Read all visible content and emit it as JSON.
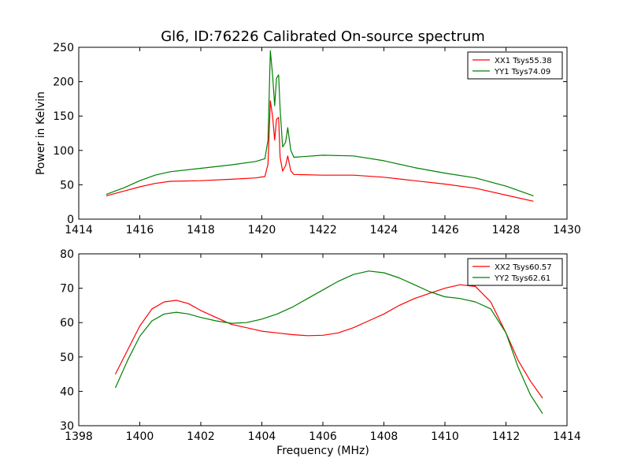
{
  "title": "Gl6, ID:76226 Calibrated On-source spectrum",
  "chart_data": [
    {
      "type": "line",
      "xlabel": "",
      "ylabel": "Power in Kelvin",
      "xlim": [
        1414,
        1430
      ],
      "ylim": [
        0,
        250
      ],
      "xticks": [
        1414,
        1416,
        1418,
        1420,
        1422,
        1424,
        1426,
        1428,
        1430
      ],
      "yticks": [
        0,
        50,
        100,
        150,
        200,
        250
      ],
      "legend": "top-right",
      "series": [
        {
          "name": "XX1 Tsys55.38",
          "color": "#ff0000",
          "x": [
            1414.9,
            1415.5,
            1416,
            1416.5,
            1417,
            1418,
            1419,
            1419.8,
            1420.1,
            1420.2,
            1420.28,
            1420.35,
            1420.42,
            1420.48,
            1420.55,
            1420.6,
            1420.68,
            1420.78,
            1420.85,
            1420.95,
            1421.05,
            1422,
            1423,
            1424,
            1425,
            1426,
            1427,
            1428,
            1428.9
          ],
          "y": [
            34,
            41,
            47,
            52,
            55,
            56,
            58,
            60,
            62,
            80,
            172,
            150,
            115,
            145,
            148,
            90,
            70,
            78,
            92,
            70,
            65,
            64,
            64,
            61,
            56,
            51,
            45,
            35,
            26
          ]
        },
        {
          "name": "YY1 Tsys74.09",
          "color": "#008000",
          "x": [
            1414.9,
            1415.5,
            1416,
            1416.5,
            1417,
            1418,
            1419,
            1419.8,
            1420.1,
            1420.2,
            1420.28,
            1420.35,
            1420.42,
            1420.48,
            1420.55,
            1420.6,
            1420.68,
            1420.78,
            1420.85,
            1420.95,
            1421.05,
            1422,
            1423,
            1424,
            1425,
            1426,
            1427,
            1428,
            1428.9
          ],
          "y": [
            36,
            46,
            56,
            64,
            69,
            74,
            79,
            84,
            88,
            115,
            245,
            210,
            165,
            205,
            210,
            160,
            105,
            112,
            133,
            100,
            90,
            93,
            92,
            85,
            75,
            67,
            60,
            48,
            34
          ]
        }
      ]
    },
    {
      "type": "line",
      "xlabel": "Frequency (MHz)",
      "ylabel": "",
      "xlim": [
        1398,
        1414
      ],
      "ylim": [
        30,
        80
      ],
      "xticks": [
        1398,
        1400,
        1402,
        1404,
        1406,
        1408,
        1410,
        1412,
        1414
      ],
      "yticks": [
        30,
        40,
        50,
        60,
        70,
        80
      ],
      "legend": "top-right",
      "series": [
        {
          "name": "XX2 Tsys60.57",
          "color": "#ff0000",
          "x": [
            1399.2,
            1399.6,
            1400,
            1400.4,
            1400.8,
            1401.2,
            1401.6,
            1402,
            1402.5,
            1403,
            1403.5,
            1404,
            1404.5,
            1405,
            1405.5,
            1406,
            1406.5,
            1407,
            1407.5,
            1408,
            1408.5,
            1409,
            1409.5,
            1410,
            1410.5,
            1411,
            1411.5,
            1412,
            1412.4,
            1412.8,
            1413.2
          ],
          "y": [
            45,
            52,
            59,
            64,
            66,
            66.5,
            65.5,
            63.5,
            61.5,
            59.5,
            58.5,
            57.5,
            57,
            56.5,
            56.2,
            56.3,
            57,
            58.5,
            60.5,
            62.5,
            65,
            67,
            68.5,
            70,
            71,
            70.5,
            66,
            57,
            49,
            43,
            38
          ]
        },
        {
          "name": "YY2 Tsys62.61",
          "color": "#008000",
          "x": [
            1399.2,
            1399.6,
            1400,
            1400.4,
            1400.8,
            1401.2,
            1401.6,
            1402,
            1402.5,
            1403,
            1403.5,
            1404,
            1404.5,
            1405,
            1405.5,
            1406,
            1406.5,
            1407,
            1407.5,
            1408,
            1408.5,
            1409,
            1409.5,
            1410,
            1410.5,
            1411,
            1411.5,
            1412,
            1412.4,
            1412.8,
            1413.2
          ],
          "y": [
            41,
            49,
            56,
            60.5,
            62.5,
            63,
            62.5,
            61.5,
            60.5,
            59.8,
            60,
            61,
            62.5,
            64.5,
            67,
            69.5,
            72,
            74,
            75,
            74.5,
            73,
            71,
            69,
            67.5,
            67,
            66,
            64,
            57,
            47,
            39,
            33.5
          ]
        }
      ]
    }
  ]
}
